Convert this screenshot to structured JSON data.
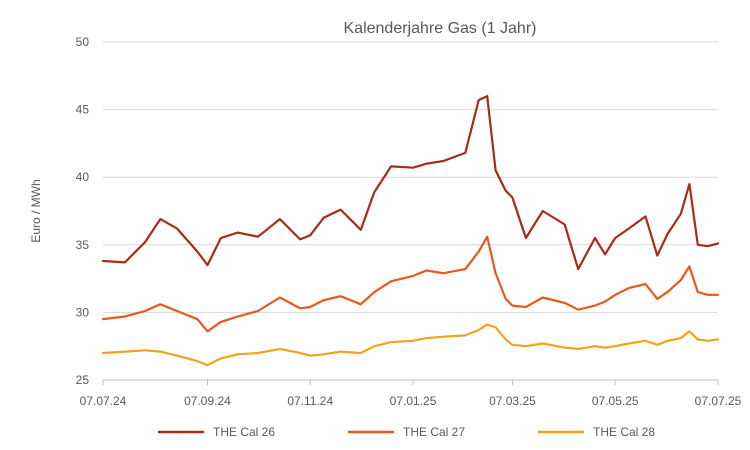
{
  "chart_data": {
    "type": "line",
    "title": "Kalenderjahre Gas (1 Jahr)",
    "ylabel": "Euro / MWh",
    "xlabel": "",
    "ylim": [
      25,
      50
    ],
    "yticks": [
      25,
      30,
      35,
      40,
      45,
      50
    ],
    "x_range": [
      "07.07.24",
      "07.07.25"
    ],
    "xticks": [
      "07.07.24",
      "07.09.24",
      "07.11.24",
      "07.01.25",
      "07.03.25",
      "07.05.25",
      "07.07.25"
    ],
    "grid": true,
    "legend_position": "bottom",
    "x": [
      "07.07.24",
      "20.07.24",
      "01.08.24",
      "10.08.24",
      "20.08.24",
      "01.09.24",
      "07.09.24",
      "15.09.24",
      "25.09.24",
      "07.10.24",
      "20.10.24",
      "01.11.24",
      "07.11.24",
      "15.11.24",
      "25.11.24",
      "07.12.24",
      "15.12.24",
      "25.12.24",
      "07.01.25",
      "15.01.25",
      "25.01.25",
      "07.02.25",
      "15.02.25",
      "20.02.25",
      "25.02.25",
      "03.03.25",
      "07.03.25",
      "15.03.25",
      "25.03.25",
      "07.04.25",
      "15.04.25",
      "25.04.25",
      "01.05.25",
      "07.05.25",
      "15.05.25",
      "25.05.25",
      "01.06.25",
      "07.06.25",
      "15.06.25",
      "20.06.25",
      "25.06.25",
      "01.07.25",
      "07.07.25"
    ],
    "series": [
      {
        "name": "THE Cal 26",
        "color": "#a82b17",
        "values": [
          33.8,
          33.7,
          35.2,
          36.9,
          36.2,
          34.5,
          33.5,
          35.5,
          35.9,
          35.6,
          36.9,
          35.4,
          35.7,
          37.0,
          37.6,
          36.1,
          38.9,
          40.8,
          40.7,
          41.0,
          41.2,
          41.8,
          45.7,
          46.0,
          40.5,
          39.0,
          38.5,
          35.5,
          37.5,
          36.5,
          33.2,
          35.5,
          34.3,
          35.5,
          36.2,
          37.1,
          34.2,
          35.8,
          37.3,
          39.5,
          35.0,
          34.9,
          35.1
        ]
      },
      {
        "name": "THE Cal 27",
        "color": "#e8581c",
        "values": [
          29.5,
          29.7,
          30.1,
          30.6,
          30.1,
          29.5,
          28.6,
          29.3,
          29.7,
          30.1,
          31.1,
          30.3,
          30.4,
          30.9,
          31.2,
          30.6,
          31.5,
          32.3,
          32.7,
          33.1,
          32.9,
          33.2,
          34.5,
          35.6,
          32.9,
          31.0,
          30.5,
          30.4,
          31.1,
          30.7,
          30.2,
          30.5,
          30.8,
          31.3,
          31.8,
          32.1,
          31.0,
          31.5,
          32.4,
          33.4,
          31.5,
          31.3,
          31.3
        ]
      },
      {
        "name": "THE Cal 28",
        "color": "#f2a21b",
        "values": [
          27.0,
          27.1,
          27.2,
          27.1,
          26.8,
          26.4,
          26.1,
          26.6,
          26.9,
          27.0,
          27.3,
          27.0,
          26.8,
          26.9,
          27.1,
          27.0,
          27.5,
          27.8,
          27.9,
          28.1,
          28.2,
          28.3,
          28.7,
          29.1,
          28.9,
          28.0,
          27.6,
          27.5,
          27.7,
          27.4,
          27.3,
          27.5,
          27.4,
          27.5,
          27.7,
          27.9,
          27.6,
          27.9,
          28.1,
          28.6,
          28.0,
          27.9,
          28.0
        ]
      }
    ]
  }
}
